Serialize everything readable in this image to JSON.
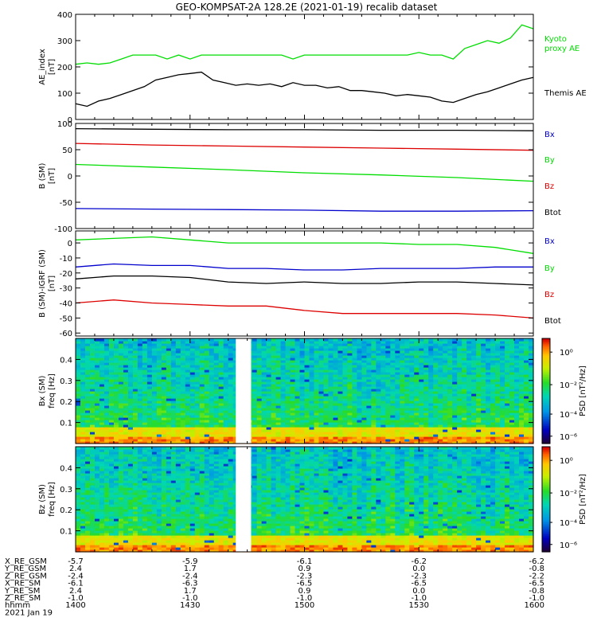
{
  "title": "GEO-KOMPSAT-2A 128.2E (2021-01-19) recalib dataset",
  "colors": {
    "black": "#000000",
    "green": "#00dd00",
    "red": "#dd0000",
    "blue": "#0000cc",
    "gap": "#ffffff"
  },
  "chart_data": [
    {
      "type": "line",
      "name": "ae-panel",
      "ylabel": "AE_index",
      "yunit": "[nT]",
      "ylim": [
        0,
        400
      ],
      "yticks": [
        "0",
        "100",
        "200",
        "300",
        "400"
      ],
      "xlim": [
        0,
        120
      ],
      "series": [
        {
          "name": "Kyoto proxy AE",
          "label_lines": [
            "Kyoto",
            "proxy AE"
          ],
          "color": "green",
          "x": [
            0,
            3,
            6,
            9,
            12,
            15,
            18,
            21,
            24,
            27,
            30,
            33,
            36,
            39,
            42,
            45,
            48,
            51,
            54,
            57,
            60,
            63,
            66,
            69,
            72,
            75,
            78,
            81,
            84,
            87,
            90,
            93,
            96,
            99,
            102,
            105,
            108,
            111,
            114,
            117,
            120
          ],
          "values": [
            210,
            215,
            210,
            215,
            230,
            245,
            245,
            245,
            230,
            245,
            230,
            245,
            245,
            245,
            245,
            245,
            245,
            245,
            245,
            230,
            245,
            245,
            245,
            245,
            245,
            245,
            245,
            245,
            245,
            245,
            255,
            245,
            245,
            230,
            270,
            285,
            300,
            290,
            310,
            360,
            345
          ]
        },
        {
          "name": "Themis AE",
          "label_lines": [
            "Themis AE"
          ],
          "color": "black",
          "x": [
            0,
            3,
            6,
            9,
            12,
            15,
            18,
            21,
            24,
            27,
            30,
            33,
            36,
            39,
            42,
            45,
            48,
            51,
            54,
            57,
            60,
            63,
            66,
            69,
            72,
            75,
            78,
            81,
            84,
            87,
            90,
            93,
            96,
            99,
            102,
            105,
            108,
            111,
            114,
            117,
            120
          ],
          "values": [
            60,
            50,
            70,
            80,
            95,
            110,
            125,
            150,
            160,
            170,
            175,
            180,
            150,
            140,
            130,
            135,
            130,
            135,
            125,
            140,
            130,
            130,
            120,
            125,
            110,
            110,
            105,
            100,
            90,
            95,
            90,
            85,
            70,
            65,
            80,
            95,
            105,
            120,
            135,
            150,
            160
          ]
        }
      ]
    },
    {
      "type": "line",
      "name": "b-sm-panel",
      "ylabel": "B (SM)",
      "yunit": "[nT]",
      "ylim": [
        -100,
        100
      ],
      "yticks": [
        "-100",
        "-50",
        "0",
        "50",
        "100"
      ],
      "xlim": [
        0,
        120
      ],
      "legend": [
        {
          "text": "Bx",
          "color": "blue"
        },
        {
          "text": "By",
          "color": "green"
        },
        {
          "text": "Bz",
          "color": "red"
        },
        {
          "text": "Btot",
          "color": "black"
        }
      ],
      "series": [
        {
          "color": "black",
          "x": [
            0,
            20,
            40,
            60,
            80,
            100,
            120
          ],
          "values": [
            90,
            89,
            88,
            88,
            87,
            87,
            86
          ]
        },
        {
          "color": "red",
          "x": [
            0,
            20,
            40,
            60,
            80,
            100,
            120
          ],
          "values": [
            62,
            59,
            57,
            55,
            53,
            51,
            49
          ]
        },
        {
          "color": "green",
          "x": [
            0,
            20,
            40,
            60,
            80,
            100,
            120
          ],
          "values": [
            22,
            17,
            12,
            6,
            2,
            -3,
            -10
          ]
        },
        {
          "color": "blue",
          "x": [
            0,
            20,
            40,
            60,
            80,
            100,
            120
          ],
          "values": [
            -62,
            -63,
            -64,
            -65,
            -67,
            -67,
            -66
          ]
        }
      ]
    },
    {
      "type": "line",
      "name": "b-sm-igrf-panel",
      "ylabel": "B (SM)-IGRF (SM)",
      "yunit": "[nT]",
      "ylim": [
        -62,
        8
      ],
      "yticks": [
        "-60",
        "-50",
        "-40",
        "-30",
        "-20",
        "-10",
        "0"
      ],
      "ytick_values": [
        -60,
        -50,
        -40,
        -30,
        -20,
        -10,
        0
      ],
      "xlim": [
        0,
        120
      ],
      "legend": [
        {
          "text": "Bx",
          "color": "blue"
        },
        {
          "text": "By",
          "color": "green"
        },
        {
          "text": "Bz",
          "color": "red"
        },
        {
          "text": "Btot",
          "color": "black"
        }
      ],
      "series": [
        {
          "color": "green",
          "x": [
            0,
            10,
            20,
            30,
            40,
            50,
            60,
            70,
            80,
            90,
            100,
            110,
            120
          ],
          "values": [
            2,
            3,
            4,
            2,
            0,
            0,
            0,
            0,
            0,
            -1,
            -1,
            -3,
            -7
          ]
        },
        {
          "color": "blue",
          "x": [
            0,
            10,
            20,
            30,
            40,
            50,
            60,
            70,
            80,
            90,
            100,
            110,
            120
          ],
          "values": [
            -16,
            -14,
            -15,
            -15,
            -17,
            -17,
            -18,
            -18,
            -17,
            -17,
            -17,
            -16,
            -16
          ]
        },
        {
          "color": "black",
          "x": [
            0,
            10,
            20,
            30,
            40,
            50,
            60,
            70,
            80,
            90,
            100,
            110,
            120
          ],
          "values": [
            -24,
            -22,
            -22,
            -23,
            -26,
            -27,
            -26,
            -27,
            -27,
            -26,
            -26,
            -27,
            -28
          ]
        },
        {
          "color": "red",
          "x": [
            0,
            10,
            20,
            30,
            40,
            50,
            60,
            70,
            80,
            90,
            100,
            110,
            120
          ],
          "values": [
            -40,
            -38,
            -40,
            -41,
            -42,
            -42,
            -45,
            -47,
            -47,
            -47,
            -47,
            -48,
            -50
          ]
        }
      ]
    },
    {
      "type": "heatmap",
      "name": "bx-spectrogram",
      "ylabel": "Bx (SM)",
      "yunit": "freq [Hz]",
      "ylim": [
        0,
        0.5
      ],
      "yticks": [
        "0.1",
        "0.2",
        "0.3",
        "0.4"
      ],
      "ytick_values": [
        0.1,
        0.2,
        0.3,
        0.4
      ],
      "xlim": [
        0,
        120
      ],
      "data_gap": [
        42,
        46
      ],
      "colorbar": {
        "label": "PSD [nT²/Hz]",
        "ticks": [
          "10⁰",
          "10⁻²",
          "10⁻⁴",
          "10⁻⁶"
        ]
      }
    },
    {
      "type": "heatmap",
      "name": "bz-spectrogram",
      "ylabel": "Bz (SM)",
      "yunit": "freq [Hz]",
      "ylim": [
        0,
        0.5
      ],
      "yticks": [
        "0.1",
        "0.2",
        "0.3",
        "0.4"
      ],
      "ytick_values": [
        0.1,
        0.2,
        0.3,
        0.4
      ],
      "xlim": [
        0,
        120
      ],
      "data_gap": [
        42,
        46
      ],
      "colorbar": {
        "label": "PSD [nT²/Hz]",
        "ticks": [
          "10⁰",
          "10⁻²",
          "10⁻⁴",
          "10⁻⁶"
        ]
      }
    }
  ],
  "x_axis": {
    "row_labels": [
      "X_RE_GSM",
      "Y_RE_GSM",
      "Z_RE_GSM",
      "X_RE_SM",
      "Y_RE_SM",
      "Z_RE_SM",
      "hhmm"
    ],
    "tick_times": [
      0,
      30,
      60,
      90,
      120
    ],
    "columns": [
      [
        "-5.7",
        "2.4",
        "-2.4",
        "-6.1",
        "2.4",
        "-1.0",
        "1400"
      ],
      [
        "-5.9",
        "1.7",
        "-2.4",
        "-6.3",
        "1.7",
        "-1.0",
        "1430"
      ],
      [
        "-6.1",
        "0.9",
        "-2.3",
        "-6.5",
        "0.9",
        "-1.0",
        "1500"
      ],
      [
        "-6.2",
        "0.0",
        "-2.3",
        "-6.5",
        "0.0",
        "-1.0",
        "1530"
      ],
      [
        "-6.2",
        "-0.8",
        "-2.2",
        "-6.5",
        "-0.8",
        "-1.0",
        "1600"
      ]
    ],
    "date": "2021 Jan 19"
  }
}
